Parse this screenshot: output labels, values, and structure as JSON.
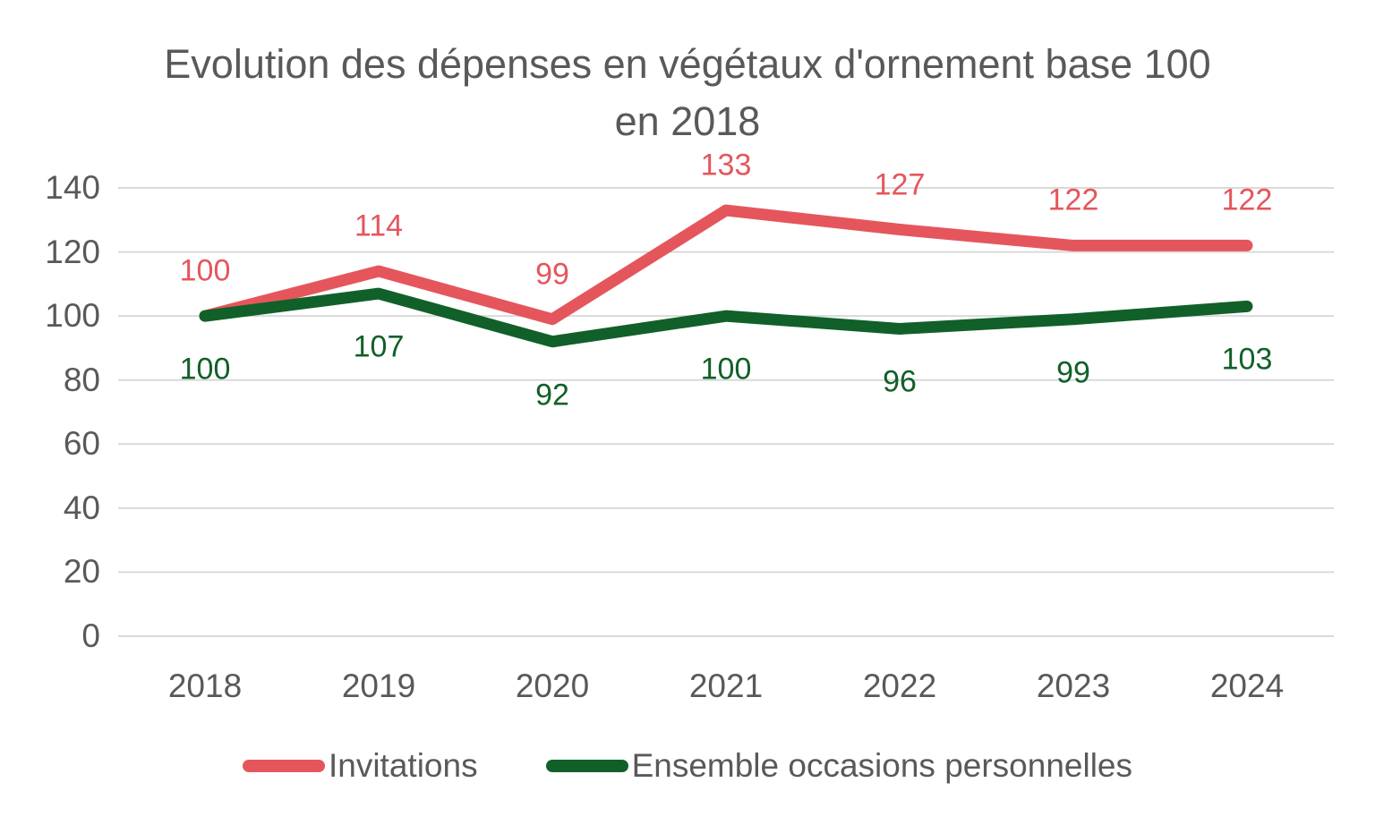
{
  "chart_data": {
    "type": "line",
    "title": "Evolution des dépenses en végétaux d'ornement base 100 en 2018",
    "categories": [
      "2018",
      "2019",
      "2020",
      "2021",
      "2022",
      "2023",
      "2024"
    ],
    "series": [
      {
        "name": "Invitations",
        "values": [
          100,
          114,
          99,
          133,
          127,
          122,
          122
        ],
        "color": "#E5565C",
        "label_position": "above"
      },
      {
        "name": "Ensemble occasions personnelles",
        "values": [
          100,
          107,
          92,
          100,
          96,
          99,
          103
        ],
        "color": "#116029",
        "label_position": "below"
      }
    ],
    "ylim": [
      0,
      140
    ],
    "ytick_step": 20,
    "yticks": [
      0,
      20,
      40,
      60,
      80,
      100,
      120,
      140
    ],
    "grid": true,
    "data_labels": true,
    "legend_position": "bottom",
    "text_color": "#595959",
    "gridline_color": "#D9D9D9"
  }
}
